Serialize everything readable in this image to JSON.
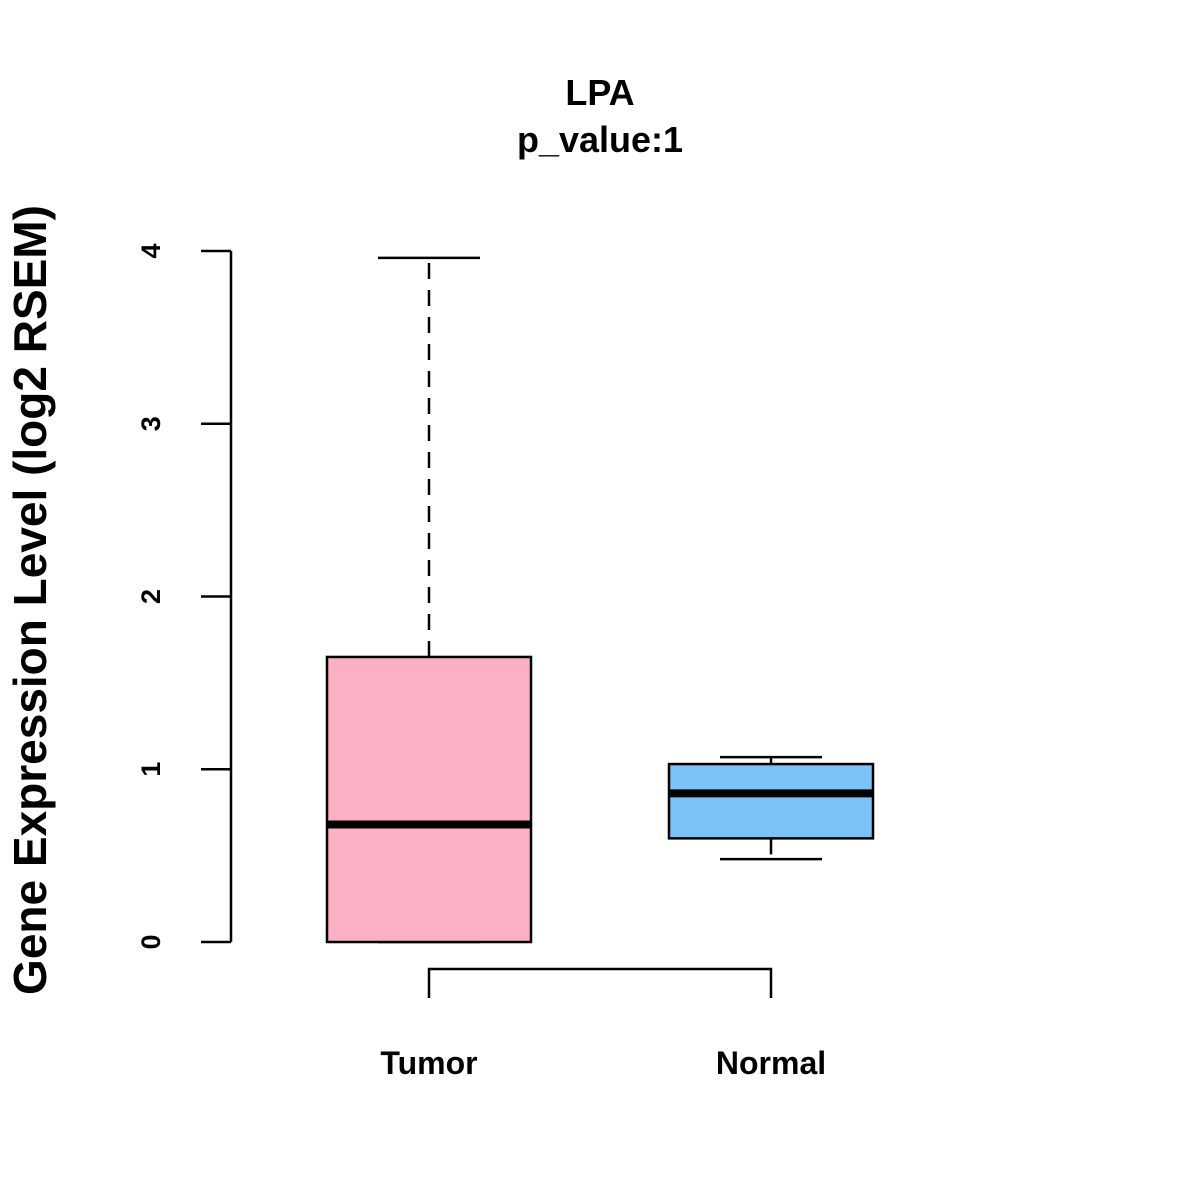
{
  "chart_data": {
    "type": "boxplot",
    "title": "LPA",
    "subtitle": "p_value:1",
    "xlabel": "",
    "ylabel": "Gene Expression Level (log2 RSEM)",
    "ylim": [
      0,
      4
    ],
    "yticks": [
      0,
      1,
      2,
      3,
      4
    ],
    "categories": [
      "Tumor",
      "Normal"
    ],
    "series": [
      {
        "name": "Tumor",
        "color": "#FBB1C3",
        "whisker_low": 0.0,
        "q1": 0.0,
        "median": 0.68,
        "q3": 1.65,
        "whisker_high": 3.96
      },
      {
        "name": "Normal",
        "color": "#7AC3F9",
        "whisker_low": 0.48,
        "q1": 0.6,
        "median": 0.86,
        "q3": 1.03,
        "whisker_high": 1.07
      }
    ],
    "comparison_bracket": [
      "Tumor",
      "Normal"
    ],
    "grid": false,
    "legend": "none"
  }
}
